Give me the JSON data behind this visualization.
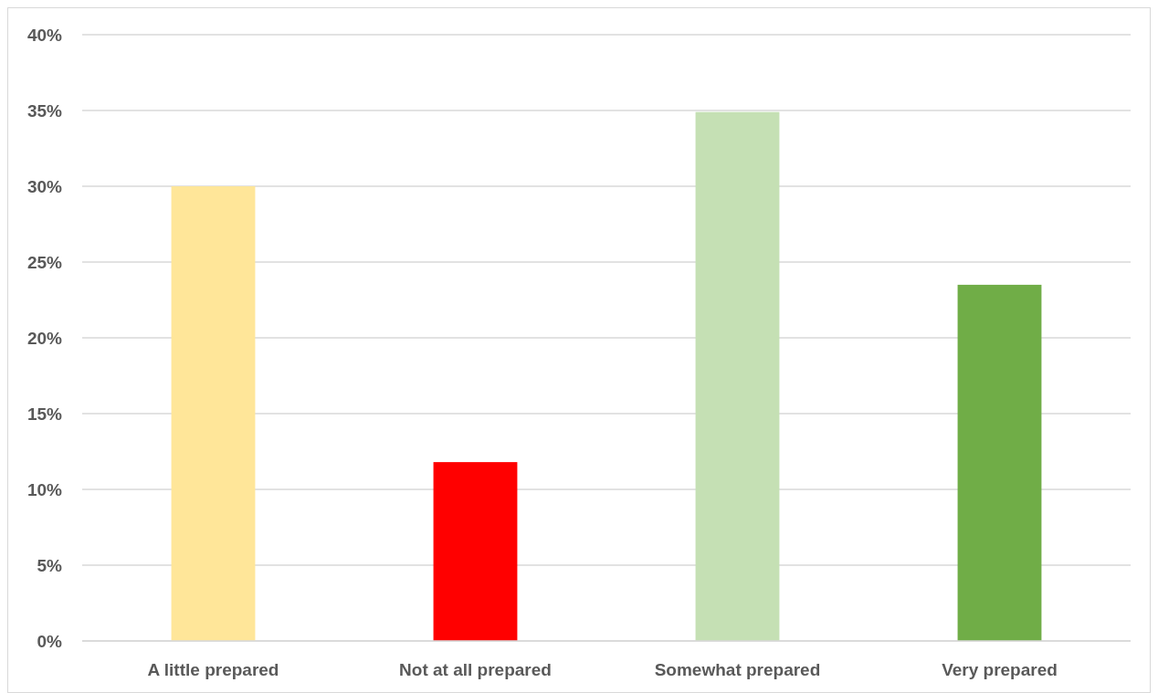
{
  "chart_data": {
    "type": "bar",
    "categories": [
      "A little prepared",
      "Not at all prepared",
      "Somewhat prepared",
      "Very prepared"
    ],
    "values": [
      30,
      11.8,
      34.9,
      23.5
    ],
    "colors": [
      "#ffe699",
      "#ff0000",
      "#c5e0b4",
      "#70ad47"
    ],
    "ylim": [
      0,
      40
    ],
    "yticks": [
      {
        "value": 0,
        "label": "0%"
      },
      {
        "value": 5,
        "label": "5%"
      },
      {
        "value": 10,
        "label": "10%"
      },
      {
        "value": 15,
        "label": "15%"
      },
      {
        "value": 20,
        "label": "20%"
      },
      {
        "value": 25,
        "label": "25%"
      },
      {
        "value": 30,
        "label": "30%"
      },
      {
        "value": 35,
        "label": "35%"
      },
      {
        "value": 40,
        "label": "40%"
      }
    ],
    "grid": "y"
  }
}
